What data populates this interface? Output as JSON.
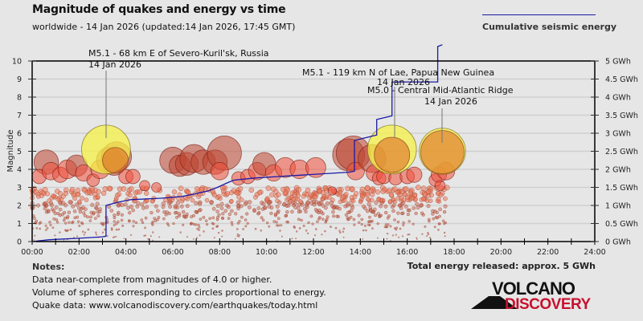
{
  "header": {
    "title": "Magnitude of quakes and energy vs time",
    "subtitle": "worldwide - 14 Jan 2026 (updated:14 Jan 2026, 17:45 GMT)"
  },
  "legend": {
    "label": "Cumulative seismic energy",
    "color": "#1a1aa6"
  },
  "summary": {
    "total_energy": "Total energy released: approx. 5 GWh"
  },
  "notes": {
    "heading": "Notes:",
    "lines": [
      "Data near-complete from magnitudes of 4.0 or higher.",
      "Volume of spheres corresponding to circles proportional to energy.",
      "Quake data: www.volcanodiscovery.com/earthquakes/today.html"
    ]
  },
  "logo": {
    "line1": "VOLCANO",
    "line2": "DISCOVERY",
    "color1": "#111111",
    "color2": "#c8102e"
  },
  "chart_data": {
    "type": "scatter",
    "title": "Magnitude of quakes and energy vs time",
    "xlabel": "",
    "ylabel": "Magnitude",
    "y2label": "Cumulative seismic energy (GWh)",
    "xlim": [
      0,
      24
    ],
    "ylim": [
      0,
      10
    ],
    "y2lim": [
      0,
      5
    ],
    "grid": true,
    "legend_position": "top-right",
    "x_ticks": [
      "00:00",
      "02:00",
      "04:00",
      "06:00",
      "08:00",
      "10:00",
      "12:00",
      "14:00",
      "16:00",
      "18:00",
      "20:00",
      "22:00",
      "24:00"
    ],
    "y_ticks": [
      "0",
      "1",
      "2",
      "3",
      "4",
      "5",
      "6",
      "7",
      "8",
      "9",
      "10"
    ],
    "y2_ticks": [
      "0 GWh",
      "0.5 GWh",
      "1 GWh",
      "1.5 GWh",
      "2 GWh",
      "2.5 GWh",
      "3 GWh",
      "3.5 GWh",
      "4 GWh",
      "4.5 GWh",
      "5 GWh"
    ],
    "highlighted_quakes": [
      {
        "time_h": 3.15,
        "mag": 5.1,
        "label": "M5.1 - 68 km E of Severo-Kuril'sk, Russia",
        "date": "14 Jan 2026"
      },
      {
        "time_h": 15.35,
        "mag": 5.1,
        "label": "M5.1 - 119 km N of Lae, Papua New Guinea",
        "date": "14 Jan 2026"
      },
      {
        "time_h": 17.5,
        "mag": 5.0,
        "label": "M5.0 - Central Mid-Atlantic Ridge",
        "date": "14 Jan 2026"
      }
    ],
    "large_quakes": [
      {
        "t": 0.6,
        "m": 4.4
      },
      {
        "t": 0.3,
        "m": 3.6
      },
      {
        "t": 0.8,
        "m": 3.9
      },
      {
        "t": 1.2,
        "m": 3.7
      },
      {
        "t": 1.5,
        "m": 4.0
      },
      {
        "t": 1.9,
        "m": 4.2
      },
      {
        "t": 2.2,
        "m": 3.8
      },
      {
        "t": 2.6,
        "m": 3.4
      },
      {
        "t": 2.9,
        "m": 4.0
      },
      {
        "t": 3.3,
        "m": 4.5
      },
      {
        "t": 3.5,
        "m": 4.3
      },
      {
        "t": 3.6,
        "m": 4.7
      },
      {
        "t": 4.0,
        "m": 3.6
      },
      {
        "t": 4.3,
        "m": 3.6
      },
      {
        "t": 4.8,
        "m": 3.1
      },
      {
        "t": 5.3,
        "m": 3.0
      },
      {
        "t": 6.0,
        "m": 4.5
      },
      {
        "t": 6.3,
        "m": 4.2
      },
      {
        "t": 6.6,
        "m": 4.3
      },
      {
        "t": 6.9,
        "m": 4.6
      },
      {
        "t": 7.3,
        "m": 4.4
      },
      {
        "t": 7.8,
        "m": 4.4
      },
      {
        "t": 8.2,
        "m": 4.9
      },
      {
        "t": 8.0,
        "m": 3.9
      },
      {
        "t": 8.8,
        "m": 3.5
      },
      {
        "t": 9.2,
        "m": 3.6
      },
      {
        "t": 9.6,
        "m": 3.9
      },
      {
        "t": 9.9,
        "m": 4.3
      },
      {
        "t": 10.3,
        "m": 3.8
      },
      {
        "t": 10.8,
        "m": 4.1
      },
      {
        "t": 11.4,
        "m": 4.0
      },
      {
        "t": 12.1,
        "m": 4.1
      },
      {
        "t": 12.8,
        "m": 2.8
      },
      {
        "t": 13.5,
        "m": 4.8
      },
      {
        "t": 13.7,
        "m": 4.9
      },
      {
        "t": 13.8,
        "m": 3.9
      },
      {
        "t": 14.5,
        "m": 4.6
      },
      {
        "t": 14.6,
        "m": 3.8
      },
      {
        "t": 14.8,
        "m": 3.5
      },
      {
        "t": 15.0,
        "m": 3.6
      },
      {
        "t": 15.5,
        "m": 3.5
      },
      {
        "t": 16.0,
        "m": 3.6
      },
      {
        "t": 16.3,
        "m": 3.7
      },
      {
        "t": 17.2,
        "m": 3.4
      },
      {
        "t": 17.35,
        "m": 3.7
      },
      {
        "t": 17.65,
        "m": 3.9
      },
      {
        "t": 17.4,
        "m": 3.1
      }
    ],
    "energy_series": {
      "name": "Cumulative seismic energy",
      "x_hours": [
        0,
        0.7,
        1.0,
        2.0,
        3.0,
        3.15,
        3.15,
        3.6,
        4.2,
        5.5,
        6.4,
        7.0,
        7.5,
        7.9,
        8.3,
        8.6,
        9.5,
        10.5,
        11.5,
        12.5,
        13.5,
        13.75,
        13.75,
        14.7,
        14.7,
        15.35,
        15.35,
        17.3,
        17.3,
        17.5
      ],
      "y_gwh": [
        0,
        0.05,
        0.06,
        0.09,
        0.13,
        0.15,
        1.0,
        1.08,
        1.16,
        1.2,
        1.25,
        1.33,
        1.4,
        1.5,
        1.62,
        1.7,
        1.76,
        1.8,
        1.84,
        1.88,
        1.92,
        1.95,
        2.8,
        2.95,
        3.38,
        3.48,
        4.42,
        4.42,
        5.4,
        5.45
      ]
    }
  }
}
